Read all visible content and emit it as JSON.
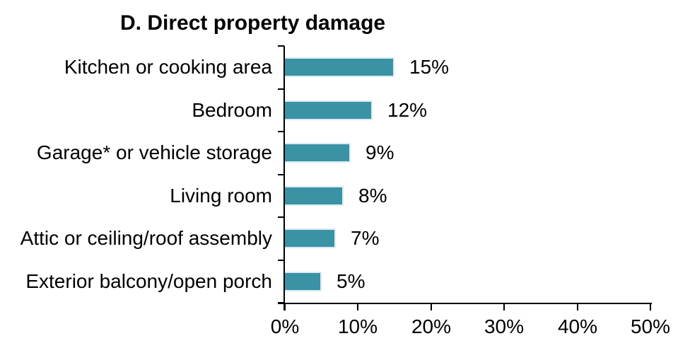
{
  "chart_data": {
    "type": "bar",
    "orientation": "horizontal",
    "title": "D. Direct property damage",
    "categories": [
      "Kitchen or cooking area",
      "Bedroom",
      "Garage* or vehicle storage",
      "Living room",
      "Attic or ceiling/roof assembly",
      "Exterior balcony/open porch"
    ],
    "values": [
      15,
      12,
      9,
      8,
      7,
      5
    ],
    "value_labels": [
      "15%",
      "12%",
      "9%",
      "8%",
      "7%",
      "5%"
    ],
    "x_ticks": [
      0,
      10,
      20,
      30,
      40,
      50
    ],
    "x_tick_labels": [
      "0%",
      "10%",
      "20%",
      "30%",
      "40%",
      "50%"
    ],
    "xlim": [
      0,
      50
    ],
    "grid": false,
    "legend": "none",
    "data_labels": "outside-end",
    "bar_color": "#3a92a5",
    "bar_border_color": "#d9ecf2",
    "axis_color": "#000000",
    "text_color": "#000000"
  }
}
